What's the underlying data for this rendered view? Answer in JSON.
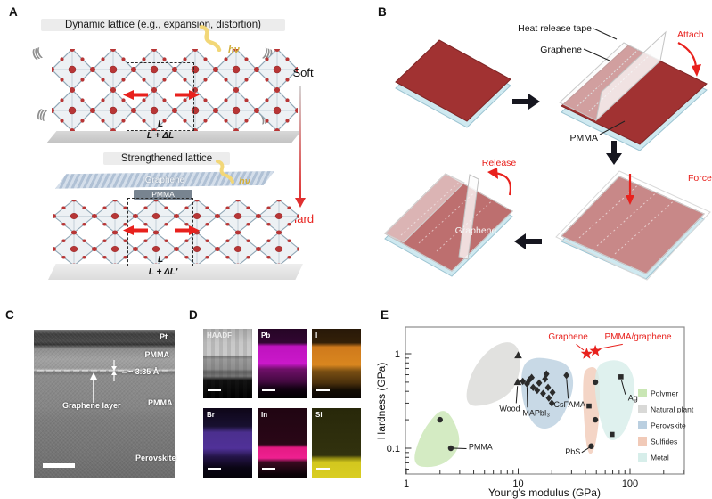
{
  "panelA": {
    "label": "A",
    "title_top": "Dynamic lattice (e.g., expansion, distortion)",
    "title_bottom": "Strengthened lattice",
    "soft": "Soft",
    "hard": "Hard",
    "hv": "hν",
    "graphene": "Graphene",
    "pmma": "PMMA",
    "unit_top": "L",
    "delta_top": "L + ΔL",
    "unit_bottom": "L",
    "delta_bottom": "L + ΔL'",
    "vib_open": "(((",
    "vib_close": ")))"
  },
  "panelB": {
    "label": "B",
    "heat_release_tape": "Heat release tape",
    "graphene": "Graphene",
    "attach": "Attach",
    "pmma": "PMMA",
    "force": "Force",
    "release": "Release",
    "graphene_on_sample": "Graphene",
    "accent_red": "#e8211d",
    "sample_red": "#a13232",
    "substrate_blue": "#cfe9f0"
  },
  "panelC": {
    "label": "C",
    "pt": "Pt",
    "pmma_top": "PMMA",
    "spacing": "~ 3.35 Å",
    "graphene_layer": "Graphene layer",
    "pmma_bottom": "PMMA",
    "perovskite": "Perovskite"
  },
  "panelD": {
    "label": "D",
    "maps": [
      {
        "label": "HAADF",
        "band_color": "#b8b8b8"
      },
      {
        "label": "Pb",
        "band_color": "#ca18ca"
      },
      {
        "label": "I",
        "band_color": "#d9861f"
      },
      {
        "label": "Br",
        "band_color": "#503198"
      },
      {
        "label": "In",
        "band_color": "#ee2090"
      },
      {
        "label": "Si",
        "band_color": "#d9cd22"
      }
    ]
  },
  "panelE": {
    "label": "E"
  },
  "chart_data": {
    "type": "scatter",
    "xlabel": "Young's modulus (GPa)",
    "ylabel": "Hardness (GPa)",
    "xscale": "log",
    "yscale": "log",
    "xlim": [
      1,
      306
    ],
    "ylim": [
      0.053,
      1.92
    ],
    "x_ticks": [
      1,
      10,
      100
    ],
    "y_ticks": [
      1,
      0.1
    ],
    "grid": false,
    "legend_position": "right-inside",
    "regions": [
      {
        "name": "Polymer",
        "color": "#c9e6b4",
        "vertices": [
          [
            1.12,
            0.065
          ],
          [
            1.3,
            0.13
          ],
          [
            1.75,
            0.22
          ],
          [
            2.15,
            0.26
          ],
          [
            2.6,
            0.21
          ],
          [
            3.1,
            0.12
          ],
          [
            2.6,
            0.078
          ],
          [
            1.8,
            0.062
          ]
        ]
      },
      {
        "name": "Natural plant",
        "color": "#d9d9d7",
        "vertices": [
          [
            3.3,
            0.28
          ],
          [
            3.7,
            0.62
          ],
          [
            5.5,
            1.15
          ],
          [
            8.5,
            1.4
          ],
          [
            10.6,
            1.05
          ],
          [
            10.2,
            0.55
          ],
          [
            8.2,
            0.36
          ],
          [
            5.2,
            0.28
          ]
        ]
      },
      {
        "name": "Perovskite",
        "color": "#bacfe0",
        "vertices": [
          [
            10.5,
            0.45
          ],
          [
            11,
            0.78
          ],
          [
            14,
            0.92
          ],
          [
            20,
            0.88
          ],
          [
            28,
            0.78
          ],
          [
            32,
            0.5
          ],
          [
            28,
            0.28
          ],
          [
            22,
            0.17
          ],
          [
            15,
            0.155
          ],
          [
            11.5,
            0.25
          ]
        ]
      },
      {
        "name": "Sulfides",
        "color": "#f1cab8",
        "vertices": [
          [
            40,
            0.7
          ],
          [
            50,
            0.74
          ],
          [
            54,
            0.5
          ],
          [
            53,
            0.18
          ],
          [
            47,
            0.085
          ],
          [
            41,
            0.09
          ],
          [
            38,
            0.28
          ],
          [
            38,
            0.55
          ]
        ]
      },
      {
        "name": "Metal",
        "color": "#d7eeea",
        "vertices": [
          [
            52,
            0.78
          ],
          [
            72,
            0.88
          ],
          [
            96,
            0.78
          ],
          [
            112,
            0.5
          ],
          [
            106,
            0.24
          ],
          [
            85,
            0.13
          ],
          [
            62,
            0.115
          ],
          [
            50,
            0.28
          ],
          [
            48,
            0.55
          ]
        ]
      }
    ],
    "series": [
      {
        "name": "polymer-circles",
        "marker": "circle",
        "color": "#2b2b2b",
        "points": [
          [
            2.0,
            0.2
          ],
          [
            2.5,
            0.1
          ]
        ]
      },
      {
        "name": "plant-triangles",
        "marker": "triangle",
        "color": "#2b2b2b",
        "points": [
          [
            10,
            0.96
          ],
          [
            9.9,
            0.5
          ]
        ]
      },
      {
        "name": "perovskite-diamonds",
        "marker": "diamond",
        "color": "#2b2b2b",
        "points": [
          [
            11,
            0.51
          ],
          [
            12,
            0.48
          ],
          [
            12.6,
            0.53
          ],
          [
            13.2,
            0.56
          ],
          [
            13.6,
            0.44
          ],
          [
            14.8,
            0.41
          ],
          [
            15.4,
            0.49
          ],
          [
            16.7,
            0.38
          ],
          [
            17.4,
            0.54
          ],
          [
            17.9,
            0.61
          ],
          [
            18.5,
            0.44
          ],
          [
            18.8,
            0.34
          ],
          [
            20,
            0.3
          ],
          [
            20.3,
            0.39
          ],
          [
            27,
            0.59
          ]
        ]
      },
      {
        "name": "sulfide-circles",
        "marker": "circle",
        "color": "#2b2b2b",
        "points": [
          [
            49,
            0.5
          ],
          [
            49,
            0.2
          ],
          [
            45,
            0.105
          ]
        ]
      },
      {
        "name": "sulfide-square",
        "marker": "square",
        "color": "#2b2b2b",
        "points": [
          [
            43,
            0.28
          ]
        ]
      },
      {
        "name": "metal-squares",
        "marker": "square",
        "color": "#2b2b2b",
        "points": [
          [
            83,
            0.57
          ],
          [
            69,
            0.14
          ]
        ]
      },
      {
        "name": "highlight-stars",
        "marker": "star",
        "color": "#e8211d",
        "points": [
          [
            41,
            1.0
          ],
          [
            49,
            1.07
          ]
        ]
      }
    ],
    "annotations": [
      {
        "text": "Wood",
        "x": 8.4,
        "y": 0.245,
        "anchor": "middle",
        "color": "#1a1a1a",
        "size": 9,
        "line": [
          [
            9.6,
            0.3
          ],
          [
            9.85,
            0.455
          ]
        ]
      },
      {
        "text": "MAPbI₃",
        "x": 14.5,
        "y": 0.222,
        "anchor": "middle",
        "color": "#1a1a1a",
        "size": 9,
        "line": [
          [
            12.1,
            0.27
          ],
          [
            12.0,
            0.44
          ]
        ]
      },
      {
        "text": "CsFAMA",
        "x": 40,
        "y": 0.272,
        "anchor": "end",
        "color": "#1a1a1a",
        "size": 9,
        "line": [
          [
            28,
            0.335
          ],
          [
            27.1,
            0.54
          ]
        ]
      },
      {
        "text": "PMMA",
        "x": 3.6,
        "y": 0.097,
        "anchor": "start",
        "color": "#1a1a1a",
        "size": 9,
        "line": [
          [
            2.65,
            0.1
          ],
          [
            3.45,
            0.099
          ]
        ]
      },
      {
        "text": "PbS",
        "x": 36,
        "y": 0.086,
        "anchor": "end",
        "color": "#1a1a1a",
        "size": 9,
        "line": [
          [
            37,
            0.09
          ],
          [
            44,
            0.103
          ]
        ]
      },
      {
        "text": "Ag",
        "x": 96,
        "y": 0.32,
        "anchor": "start",
        "color": "#1a1a1a",
        "size": 9,
        "line": [
          [
            84,
            0.52
          ],
          [
            91,
            0.37
          ]
        ]
      },
      {
        "text": "Graphene",
        "x": 28,
        "y": 1.42,
        "anchor": "middle",
        "color": "#e8211d",
        "size": 10,
        "line": [
          [
            33,
            1.26
          ],
          [
            38.5,
            1.09
          ]
        ]
      },
      {
        "text": "PMMA/graphene",
        "x": 118,
        "y": 1.42,
        "anchor": "middle",
        "color": "#e8211d",
        "size": 10,
        "line": [
          [
            86,
            1.26
          ],
          [
            53,
            1.13
          ]
        ]
      }
    ],
    "legend": [
      {
        "label": "Polymer",
        "color": "#c9e6b4"
      },
      {
        "label": "Natural plant",
        "color": "#d9d9d7"
      },
      {
        "label": "Perovskite",
        "color": "#bacfe0"
      },
      {
        "label": "Sulfides",
        "color": "#f1cab8"
      },
      {
        "label": "Metal",
        "color": "#d7eeea"
      }
    ]
  }
}
